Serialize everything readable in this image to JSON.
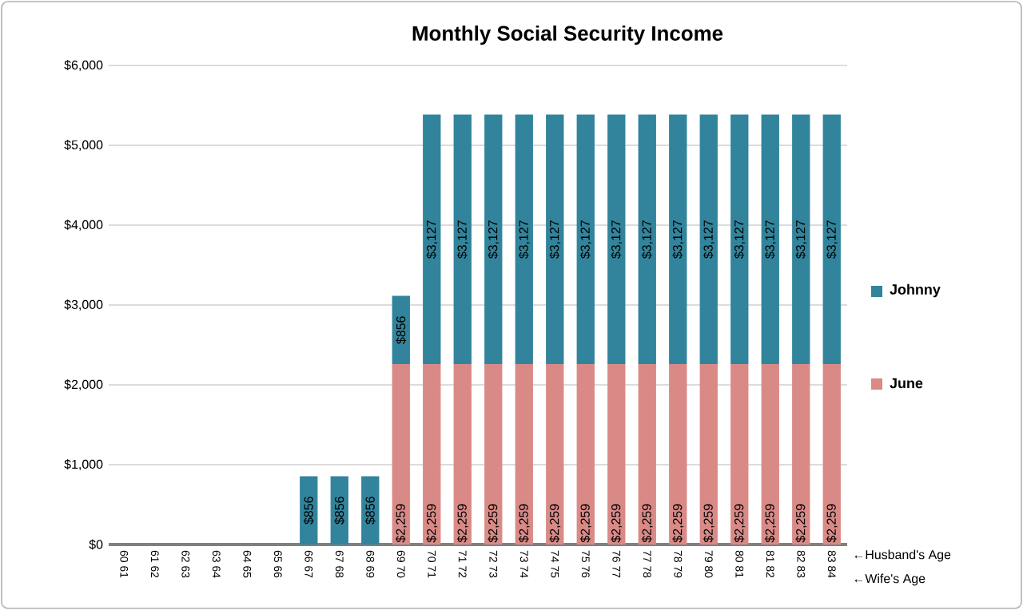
{
  "chart_data": {
    "type": "bar",
    "stacked": true,
    "title": "Monthly Social Security Income",
    "categories": [
      "60 61",
      "61 62",
      "62 63",
      "63 64",
      "64 65",
      "65 66",
      "66 67",
      "67 68",
      "68 69",
      "69 70",
      "70 71",
      "71 72",
      "72 73",
      "73 74",
      "74 75",
      "75 76",
      "76 77",
      "77 78",
      "78 79",
      "79 80",
      "80 81",
      "81 82",
      "82 83",
      "83 84"
    ],
    "series": [
      {
        "name": "June",
        "color": "#d98a87",
        "values": [
          null,
          null,
          null,
          null,
          null,
          null,
          null,
          null,
          null,
          2259,
          2259,
          2259,
          2259,
          2259,
          2259,
          2259,
          2259,
          2259,
          2259,
          2259,
          2259,
          2259,
          2259,
          2259
        ],
        "value_labels": [
          null,
          null,
          null,
          null,
          null,
          null,
          null,
          null,
          null,
          "$2,259",
          "$2,259",
          "$2,259",
          "$2,259",
          "$2,259",
          "$2,259",
          "$2,259",
          "$2,259",
          "$2,259",
          "$2,259",
          "$2,259",
          "$2,259",
          "$2,259",
          "$2,259",
          "$2,259"
        ]
      },
      {
        "name": "Johnny",
        "color": "#31849b",
        "values": [
          null,
          null,
          null,
          null,
          null,
          null,
          856,
          856,
          856,
          856,
          3127,
          3127,
          3127,
          3127,
          3127,
          3127,
          3127,
          3127,
          3127,
          3127,
          3127,
          3127,
          3127,
          3127
        ],
        "value_labels": [
          null,
          null,
          null,
          null,
          null,
          null,
          "$856",
          "$856",
          "$856",
          "$856",
          "$3,127",
          "$3,127",
          "$3,127",
          "$3,127",
          "$3,127",
          "$3,127",
          "$3,127",
          "$3,127",
          "$3,127",
          "$3,127",
          "$3,127",
          "$3,127",
          "$3,127",
          "$3,127"
        ]
      }
    ],
    "ylim": [
      0,
      6000
    ],
    "yticks": [
      {
        "value": 0,
        "label": "$0"
      },
      {
        "value": 1000,
        "label": "$1,000"
      },
      {
        "value": 2000,
        "label": "$2,000"
      },
      {
        "value": 3000,
        "label": "$3,000"
      },
      {
        "value": 4000,
        "label": "$4,000"
      },
      {
        "value": 5000,
        "label": "$5,000"
      },
      {
        "value": 6000,
        "label": "$6,000"
      }
    ],
    "grid": "y",
    "legend": "right",
    "annotations": [
      "←Husband's Age",
      "←Wife's Age"
    ]
  }
}
